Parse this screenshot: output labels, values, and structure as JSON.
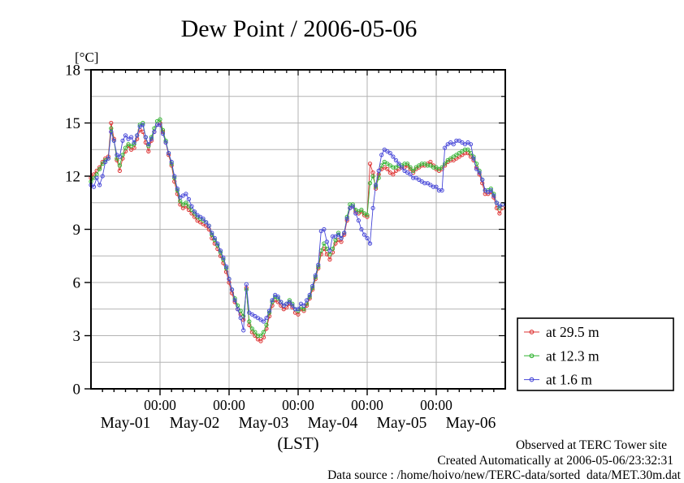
{
  "title": "Dew Point / 2006-05-06",
  "y_unit": "[°C]",
  "x_caption": "(LST)",
  "footer": {
    "line1": "Observed at TERC Tower site",
    "line2": "Created Automatically at 2006-05-06/23:32:31",
    "line3": "Data source : /home/hoivo/new/TERC-data/sorted  data/MET.30m.dat"
  },
  "colors": {
    "red": "#dd3333",
    "green": "#33b433",
    "blue": "#4747d8",
    "grid": "#b3b3b3",
    "frame": "#000000",
    "background": "#ffffff"
  },
  "chart_data": {
    "type": "line",
    "title": "Dew Point / 2006-05-06",
    "ylabel": "[°C]",
    "xlabel": "(LST)",
    "ylim": [
      0,
      18
    ],
    "yticks": [
      0,
      3,
      6,
      9,
      12,
      15,
      18
    ],
    "y_minor_step": 1.5,
    "grid": true,
    "x_hours_range": [
      0,
      144
    ],
    "x_start_hour": 0,
    "x_step_hours": 1,
    "x_minor_tick_step_hours": 4,
    "x_major_tick_hours": [
      24,
      48,
      72,
      96,
      120
    ],
    "x_major_tick_label": "00:00",
    "day_labels": [
      "May-01",
      "May-02",
      "May-03",
      "May-04",
      "May-05",
      "May-06"
    ],
    "legend_position": "outside-right-bottom",
    "marker": "open-circle",
    "series": [
      {
        "name": "at 29.5 m",
        "color": "#dd3333",
        "values": [
          11.9,
          12.1,
          12.3,
          12.5,
          12.8,
          13.0,
          13.1,
          15.0,
          14.1,
          12.9,
          12.3,
          13.0,
          13.4,
          13.7,
          13.5,
          13.6,
          14.1,
          14.6,
          14.5,
          13.9,
          13.4,
          14.0,
          14.5,
          14.9,
          15.0,
          14.5,
          13.9,
          13.2,
          12.6,
          11.7,
          11.0,
          10.4,
          10.2,
          10.3,
          10.1,
          9.9,
          9.7,
          9.5,
          9.4,
          9.3,
          9.2,
          9.0,
          8.5,
          8.2,
          7.9,
          7.5,
          7.1,
          6.6,
          6.0,
          5.4,
          4.9,
          4.5,
          4.2,
          3.9,
          5.7,
          3.6,
          3.2,
          3.0,
          2.8,
          2.7,
          2.9,
          3.4,
          4.1,
          4.7,
          5.0,
          4.9,
          4.7,
          4.5,
          4.6,
          4.8,
          4.6,
          4.3,
          4.2,
          4.5,
          4.4,
          4.7,
          5.1,
          5.6,
          6.2,
          6.8,
          7.6,
          7.9,
          7.6,
          7.3,
          7.7,
          8.2,
          8.4,
          8.3,
          8.7,
          9.5,
          10.2,
          10.3,
          10.0,
          9.9,
          10.0,
          9.8,
          9.7,
          12.7,
          12.2,
          11.3,
          12.1,
          12.4,
          12.5,
          12.4,
          12.2,
          12.1,
          12.3,
          12.4,
          12.5,
          12.5,
          12.6,
          12.4,
          12.2,
          12.4,
          12.5,
          12.6,
          12.6,
          12.7,
          12.8,
          12.6,
          12.4,
          12.3,
          12.4,
          12.6,
          12.8,
          12.9,
          12.9,
          13.0,
          13.1,
          13.2,
          13.3,
          13.3,
          13.1,
          12.9,
          12.5,
          12.1,
          11.6,
          11.0,
          11.0,
          11.1,
          10.8,
          10.2,
          9.9,
          10.2
        ]
      },
      {
        "name": "at 12.3 m",
        "color": "#33b433",
        "values": [
          11.7,
          11.9,
          12.1,
          12.4,
          12.7,
          12.9,
          13.0,
          14.7,
          14.0,
          13.0,
          12.6,
          13.2,
          13.6,
          13.8,
          13.7,
          13.8,
          14.3,
          14.9,
          15.0,
          14.2,
          13.7,
          14.2,
          14.7,
          15.1,
          15.2,
          14.6,
          14.0,
          13.3,
          12.7,
          11.9,
          11.2,
          10.6,
          10.4,
          10.5,
          10.3,
          10.1,
          9.9,
          9.7,
          9.6,
          9.5,
          9.4,
          9.2,
          8.7,
          8.4,
          8.1,
          7.7,
          7.3,
          6.8,
          6.2,
          5.6,
          5.1,
          4.7,
          4.4,
          4.1,
          5.6,
          3.8,
          3.4,
          3.2,
          3.0,
          3.0,
          3.2,
          3.6,
          4.3,
          4.9,
          5.2,
          5.1,
          4.9,
          4.7,
          4.8,
          5.0,
          4.8,
          4.5,
          4.4,
          4.6,
          4.5,
          4.8,
          5.2,
          5.7,
          6.3,
          6.9,
          7.8,
          8.2,
          7.9,
          7.6,
          7.9,
          8.4,
          8.8,
          8.5,
          8.8,
          9.7,
          10.4,
          10.4,
          10.1,
          10.0,
          10.1,
          9.9,
          9.8,
          11.6,
          12.0,
          11.4,
          11.9,
          12.6,
          12.8,
          12.7,
          12.6,
          12.5,
          12.5,
          12.6,
          12.6,
          12.7,
          12.7,
          12.5,
          12.3,
          12.5,
          12.6,
          12.7,
          12.7,
          12.6,
          12.6,
          12.5,
          12.5,
          12.4,
          12.5,
          12.7,
          12.9,
          13.0,
          13.1,
          13.2,
          13.3,
          13.4,
          13.5,
          13.5,
          13.3,
          13.1,
          12.7,
          12.3,
          11.8,
          11.2,
          11.2,
          11.3,
          11.0,
          10.5,
          10.2,
          10.4
        ]
      },
      {
        "name": "at 1.6 m",
        "color": "#4747d8",
        "values": [
          11.5,
          11.4,
          11.9,
          11.5,
          12.0,
          12.8,
          13.0,
          14.5,
          14.0,
          13.2,
          13.1,
          14.0,
          14.3,
          14.1,
          14.2,
          13.9,
          14.3,
          14.8,
          14.9,
          14.2,
          13.8,
          14.1,
          14.5,
          14.9,
          14.9,
          14.4,
          13.9,
          13.3,
          12.8,
          12.0,
          11.3,
          10.8,
          10.9,
          11.0,
          10.7,
          10.3,
          10.0,
          9.8,
          9.7,
          9.6,
          9.4,
          9.2,
          8.8,
          8.5,
          8.2,
          7.8,
          7.4,
          6.9,
          6.2,
          5.6,
          5.0,
          4.5,
          4.0,
          3.3,
          5.9,
          4.3,
          4.2,
          4.1,
          4.0,
          3.9,
          3.8,
          4.0,
          4.4,
          5.0,
          5.3,
          5.2,
          4.9,
          4.7,
          4.8,
          4.9,
          4.7,
          4.5,
          4.5,
          4.8,
          4.7,
          5.0,
          5.3,
          5.8,
          6.4,
          7.0,
          8.9,
          9.0,
          8.3,
          7.8,
          8.6,
          8.6,
          8.7,
          8.5,
          8.8,
          9.6,
          10.2,
          10.3,
          9.9,
          9.5,
          9.0,
          8.7,
          8.5,
          8.2,
          10.2,
          11.5,
          12.3,
          13.2,
          13.5,
          13.4,
          13.3,
          13.1,
          12.9,
          12.7,
          12.5,
          12.3,
          12.2,
          12.1,
          11.9,
          11.9,
          11.8,
          11.7,
          11.6,
          11.6,
          11.5,
          11.4,
          11.4,
          11.2,
          11.2,
          13.6,
          13.8,
          13.9,
          13.8,
          14.0,
          14.0,
          13.9,
          13.8,
          13.9,
          13.8,
          13.0,
          12.4,
          12.2,
          11.8,
          11.2,
          11.1,
          11.2,
          10.9,
          10.5,
          10.3,
          10.4
        ]
      }
    ]
  }
}
